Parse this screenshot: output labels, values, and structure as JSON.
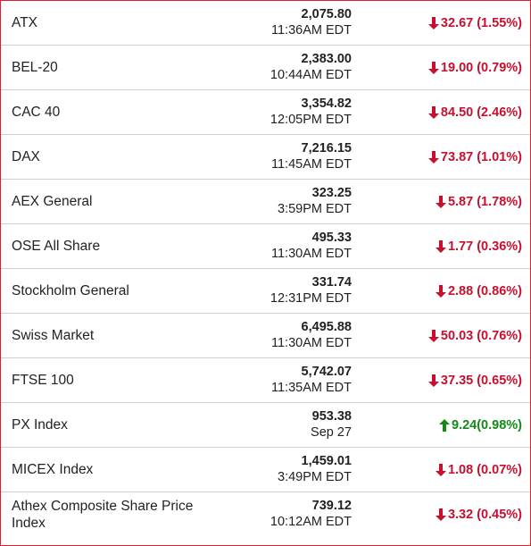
{
  "colors": {
    "down": "#c8102e",
    "up": "#128a16",
    "frame": "#d9232e",
    "divider": "#cfcfcf"
  },
  "indices": [
    {
      "name": "ATX",
      "value": "2,075.80",
      "time": "11:36AM EDT",
      "change": "32.67 (1.55%)",
      "direction": "down",
      "arrow_icon": "arrow-down-icon"
    },
    {
      "name": "BEL-20",
      "value": "2,383.00",
      "time": "10:44AM EDT",
      "change": "19.00 (0.79%)",
      "direction": "down",
      "arrow_icon": "arrow-down-icon"
    },
    {
      "name": "CAC 40",
      "value": "3,354.82",
      "time": "12:05PM EDT",
      "change": "84.50 (2.46%)",
      "direction": "down",
      "arrow_icon": "arrow-down-icon"
    },
    {
      "name": "DAX",
      "value": "7,216.15",
      "time": "11:45AM EDT",
      "change": "73.87 (1.01%)",
      "direction": "down",
      "arrow_icon": "arrow-down-icon"
    },
    {
      "name": "AEX General",
      "value": "323.25",
      "time": "3:59PM EDT",
      "change": "5.87 (1.78%)",
      "direction": "down",
      "arrow_icon": "arrow-down-icon"
    },
    {
      "name": "OSE All Share",
      "value": "495.33",
      "time": "11:30AM EDT",
      "change": "1.77 (0.36%)",
      "direction": "down",
      "arrow_icon": "arrow-down-icon"
    },
    {
      "name": "Stockholm General",
      "value": "331.74",
      "time": "12:31PM EDT",
      "change": "2.88 (0.86%)",
      "direction": "down",
      "arrow_icon": "arrow-down-icon"
    },
    {
      "name": "Swiss Market",
      "value": "6,495.88",
      "time": "11:30AM EDT",
      "change": "50.03 (0.76%)",
      "direction": "down",
      "arrow_icon": "arrow-down-icon"
    },
    {
      "name": "FTSE 100",
      "value": "5,742.07",
      "time": "11:35AM EDT",
      "change": "37.35 (0.65%)",
      "direction": "down",
      "arrow_icon": "arrow-down-icon"
    },
    {
      "name": "PX Index",
      "value": "953.38",
      "time": "Sep 27",
      "change": "9.24(0.98%)",
      "direction": "up",
      "arrow_icon": "arrow-up-icon"
    },
    {
      "name": "MICEX Index",
      "value": "1,459.01",
      "time": "3:49PM EDT",
      "change": "1.08 (0.07%)",
      "direction": "down",
      "arrow_icon": "arrow-down-icon"
    },
    {
      "name": "Athex Composite Share Price Index",
      "value": "739.12",
      "time": "10:12AM EDT",
      "change": "3.32 (0.45%)",
      "direction": "down",
      "arrow_icon": "arrow-down-icon"
    }
  ]
}
